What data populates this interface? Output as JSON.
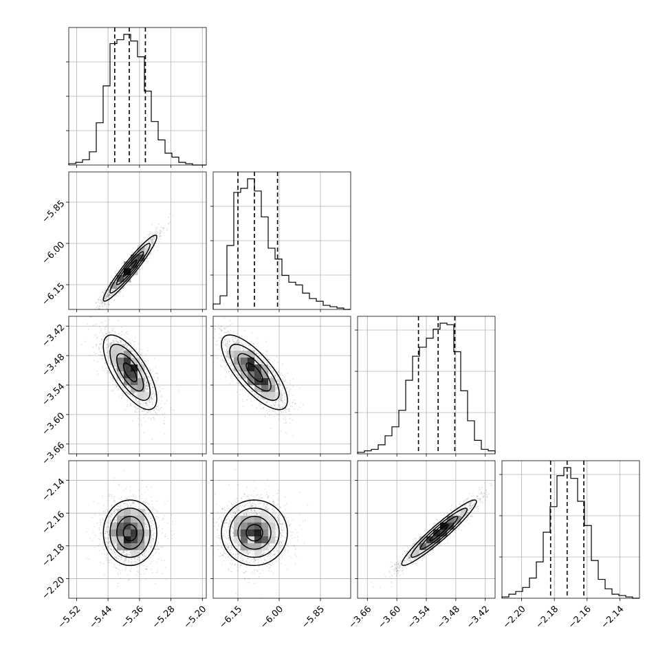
{
  "chart_data": {
    "type": "corner",
    "parameters": [
      {
        "range": [
          -5.54,
          -5.19
        ],
        "ticks": [
          -5.52,
          -5.44,
          -5.36,
          -5.28,
          -5.2
        ],
        "tick_labels": [
          "−5.52",
          "−5.44",
          "−5.36",
          "−5.28",
          "−5.20"
        ],
        "quantiles": [
          -5.423,
          -5.386,
          -5.345
        ],
        "hist_density": [
          1,
          2,
          4,
          10,
          32,
          60,
          92,
          95,
          99,
          94,
          82,
          56,
          33,
          19,
          9,
          6,
          2,
          1,
          0,
          0
        ],
        "hist_yticks": [
          0.25,
          0.5,
          0.75
        ],
        "mean": -5.384,
        "sd": 0.034
      },
      {
        "range": [
          -6.24,
          -5.74
        ],
        "ticks": [
          -6.15,
          -6.0,
          -5.85
        ],
        "tick_labels": [
          "−6.15",
          "−6.00",
          "−5.85"
        ],
        "quantiles": [
          -6.15,
          -6.09,
          -6.006
        ],
        "hist_density": [
          4,
          10,
          47,
          86,
          89,
          96,
          87,
          68,
          45,
          37,
          25,
          20,
          18,
          12,
          8,
          6,
          3,
          2,
          1,
          0
        ],
        "hist_yticks": [
          0.25,
          0.5,
          0.75
        ],
        "mean": -6.09,
        "sd": 0.06
      },
      {
        "range": [
          -3.68,
          -3.4
        ],
        "ticks": [
          -3.66,
          -3.6,
          -3.54,
          -3.48,
          -3.42
        ],
        "tick_labels": [
          "−3.66",
          "−3.60",
          "−3.54",
          "−3.48",
          "−3.42"
        ],
        "quantiles": [
          -3.556,
          -3.516,
          -3.482
        ],
        "hist_density": [
          1,
          2,
          3,
          6,
          12,
          18,
          29,
          49,
          65,
          71,
          77,
          83,
          87,
          86,
          68,
          42,
          22,
          9,
          3,
          2
        ],
        "hist_yticks": [
          0.3,
          0.6,
          0.9
        ],
        "mean": -3.514,
        "sd": 0.038
      },
      {
        "range": [
          -2.212,
          -2.128
        ],
        "ticks": [
          -2.2,
          -2.18,
          -2.16,
          -2.14
        ],
        "tick_labels": [
          "−2.20",
          "−2.18",
          "−2.16",
          "−2.14"
        ],
        "quantiles": [
          -2.1823,
          -2.1722,
          -2.162
        ],
        "hist_density": [
          1,
          3,
          5,
          8,
          15,
          27,
          49,
          68,
          91,
          97,
          89,
          72,
          54,
          28,
          14,
          7,
          3,
          2,
          1,
          0
        ],
        "hist_yticks": [
          0.3,
          0.6,
          0.9
        ],
        "mean": -2.172,
        "sd": 0.01
      }
    ],
    "correlations": {
      "1-0": 0.95,
      "2-0": -0.7,
      "2-1": -0.75,
      "3-0": 0.0,
      "3-1": 0.0,
      "3-2": 0.95
    },
    "samples_per_panel": 2000,
    "grid": true
  }
}
